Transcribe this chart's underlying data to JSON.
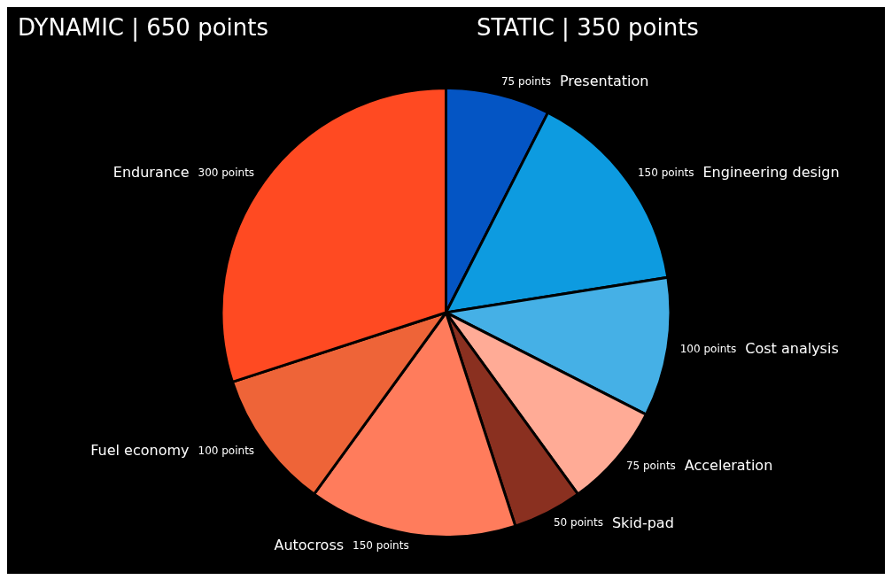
{
  "chart_data": {
    "type": "pie",
    "title": "DYNAMIC | 650 points",
    "subtitle": "STATIC | 350 points",
    "categories": [
      "Presentation",
      "Engineering design",
      "Cost analysis",
      "Acceleration",
      "Skid-pad",
      "Autocross",
      "Fuel economy",
      "Endurance"
    ],
    "values": [
      75,
      150,
      100,
      75,
      50,
      150,
      100,
      300
    ],
    "value_labels": [
      "75 points",
      "150 points",
      "100 points",
      "75 points",
      "50 points",
      "150 points",
      "100 points",
      "300 points"
    ],
    "colors": [
      "#0455c4",
      "#0d9be0",
      "#45b0e6",
      "#ffab96",
      "#8a3020",
      "#ff7c5c",
      "#ee6438",
      "#ff4a22"
    ],
    "legend": false
  }
}
